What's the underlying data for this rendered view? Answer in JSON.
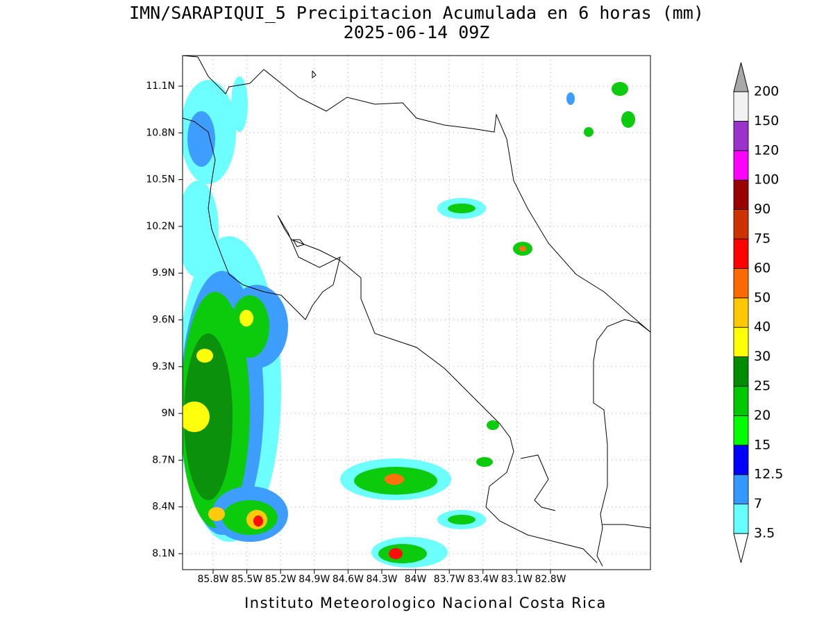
{
  "map": {
    "title": "IMN/SARAPIQUI_5 Precipitacion Acumulada en 6 horas (mm)",
    "subtitle": "2025-06-14 09Z",
    "lat_ticks": [
      "11.1N",
      "10.8N",
      "10.5N",
      "10.2N",
      "9.9N",
      "9.6N",
      "9.3N",
      "9N",
      "8.7N",
      "8.4N",
      "8.1N"
    ],
    "lon_ticks": [
      "85.8W",
      "85.5W",
      "85.2W",
      "84.9W",
      "84.6W",
      "84.3W",
      "84W",
      "83.7W",
      "83.4W",
      "83.1W",
      "82.8W"
    ],
    "footer": "Instituto Meteorologico Nacional Costa Rica"
  },
  "colorbar": {
    "levels": [
      3.5,
      7,
      12.5,
      15,
      20,
      25,
      30,
      40,
      50,
      60,
      75,
      90,
      100,
      120,
      150,
      200
    ],
    "colors": [
      "#66ffff",
      "#3399ff",
      "#0000ff",
      "#00ff00",
      "#00c800",
      "#008c00",
      "#ffff00",
      "#ffc800",
      "#ff6a00",
      "#ff0000",
      "#cc3300",
      "#990000",
      "#ff00ff",
      "#9933cc",
      "#f2f2f2"
    ],
    "over_color": "#a8a8a8",
    "under_color": "#ffffff"
  }
}
